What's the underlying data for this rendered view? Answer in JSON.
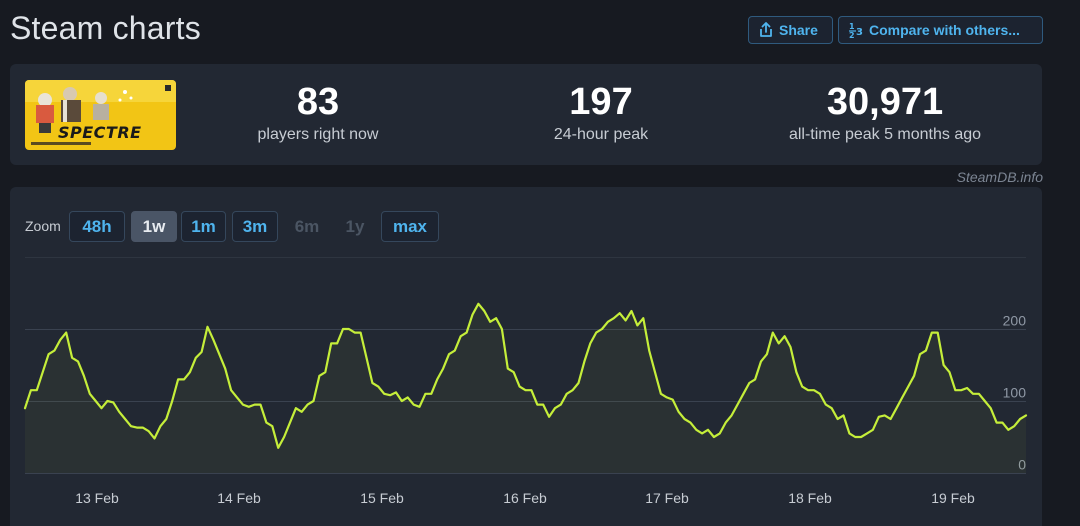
{
  "page": {
    "title": "Steam charts"
  },
  "header": {
    "share_label": "Share",
    "compare_label": "Compare with others..."
  },
  "stats": {
    "current": {
      "value": "83",
      "label": "players right now"
    },
    "peak_24h": {
      "value": "197",
      "label": "24-hour peak"
    },
    "all_time": {
      "value": "30,971",
      "label": "all-time peak 5 months ago"
    }
  },
  "game": {
    "logo_text": "SPECTRE"
  },
  "credit": "SteamDB.info",
  "zoom": {
    "label": "Zoom",
    "options": [
      {
        "label": "48h",
        "state": "normal"
      },
      {
        "label": "1w",
        "state": "active"
      },
      {
        "label": "1m",
        "state": "normal"
      },
      {
        "label": "3m",
        "state": "normal"
      },
      {
        "label": "6m",
        "state": "disabled"
      },
      {
        "label": "1y",
        "state": "disabled"
      },
      {
        "label": "max",
        "state": "normal"
      }
    ]
  },
  "colors": {
    "line": "#c5ee3a",
    "accent": "#4fb4ee",
    "grid": "#3a4250",
    "axis_text": "#8f98a5"
  },
  "chart_data": {
    "type": "line",
    "x_tick_labels": [
      "13 Feb",
      "14 Feb",
      "15 Feb",
      "16 Feb",
      "17 Feb",
      "18 Feb",
      "19 Feb"
    ],
    "y_tick_labels": [
      "0",
      "100",
      "200"
    ],
    "ylim": [
      0,
      300
    ],
    "grid": true,
    "legend": "none",
    "series": [
      {
        "values": [
          90,
          115,
          115,
          140,
          165,
          170,
          185,
          195,
          160,
          155,
          135,
          110,
          100,
          90,
          100,
          98,
          85,
          75,
          65,
          63,
          63,
          58,
          48,
          65,
          75,
          100,
          130,
          130,
          140,
          160,
          168,
          203,
          185,
          165,
          145,
          115,
          105,
          95,
          92,
          95,
          95,
          70,
          65,
          35,
          50,
          70,
          90,
          85,
          95,
          100,
          135,
          140,
          180,
          180,
          200,
          200,
          195,
          195,
          160,
          125,
          120,
          110,
          108,
          112,
          100,
          105,
          95,
          92,
          110,
          110,
          130,
          145,
          165,
          170,
          190,
          195,
          220,
          235,
          225,
          210,
          215,
          200,
          145,
          140,
          120,
          115,
          115,
          95,
          95,
          78,
          90,
          95,
          110,
          115,
          125,
          155,
          180,
          195,
          200,
          210,
          215,
          222,
          212,
          225,
          205,
          215,
          170,
          140,
          110,
          105,
          102,
          85,
          75,
          70,
          60,
          55,
          60,
          50,
          55,
          70,
          80,
          95,
          110,
          125,
          130,
          155,
          165,
          195,
          180,
          190,
          175,
          140,
          120,
          115,
          115,
          110,
          95,
          90,
          75,
          80,
          55,
          50,
          50,
          55,
          60,
          78,
          80,
          75,
          90,
          105,
          120,
          135,
          165,
          170,
          195,
          195,
          150,
          140,
          115,
          115,
          118,
          110,
          110,
          100,
          90,
          70,
          70,
          60,
          65,
          75,
          80
        ]
      }
    ]
  }
}
